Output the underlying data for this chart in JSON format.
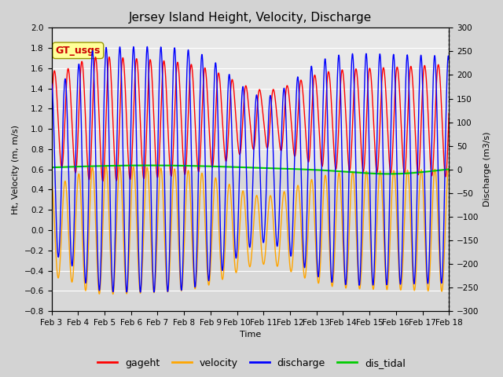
{
  "title": "Jersey Island Height, Velocity, Discharge",
  "xlabel": "Time",
  "ylabel_left": "Ht, Velocity (m, m/s)",
  "ylabel_right": "Discharge (m3/s)",
  "ylim_left": [
    -0.8,
    2.0
  ],
  "ylim_right": [
    -300,
    300
  ],
  "yticks_left": [
    -0.8,
    -0.6,
    -0.4,
    -0.2,
    0.0,
    0.2,
    0.4,
    0.6,
    0.8,
    1.0,
    1.2,
    1.4,
    1.6,
    1.8,
    2.0
  ],
  "yticks_right": [
    -300,
    -250,
    -200,
    -150,
    -100,
    -50,
    0,
    50,
    100,
    150,
    200,
    250,
    300
  ],
  "xtick_labels": [
    "Feb 3",
    "Feb 4",
    "Feb 5",
    "Feb 6",
    "Feb 7",
    "Feb 8",
    "Feb 9",
    "Feb 10",
    "Feb 11",
    "Feb 12",
    "Feb 13",
    "Feb 14",
    "Feb 15",
    "Feb 16",
    "Feb 17",
    "Feb 18"
  ],
  "n_days": 15,
  "legend_labels": [
    "gageht",
    "velocity",
    "discharge",
    "dis_tidal"
  ],
  "legend_colors": [
    "#ff0000",
    "#ffa500",
    "#0000ff",
    "#00cc00"
  ],
  "gt_usgs_label": "GT_usgs",
  "gt_usgs_color": "#cc0000",
  "gt_usgs_bg": "#ffff99",
  "background_color": "#d3d3d3",
  "plot_bg_upper": "#e8e8e8",
  "plot_bg_lower": "#d0d0d0",
  "grid_color": "#ffffff",
  "line_width": 1.0,
  "tidal_period_hours": 12.4,
  "samples_per_hour": 6,
  "title_fontsize": 11,
  "label_fontsize": 8,
  "tick_fontsize": 7.5,
  "figwidth": 6.4,
  "figheight": 4.8,
  "dpi": 100
}
